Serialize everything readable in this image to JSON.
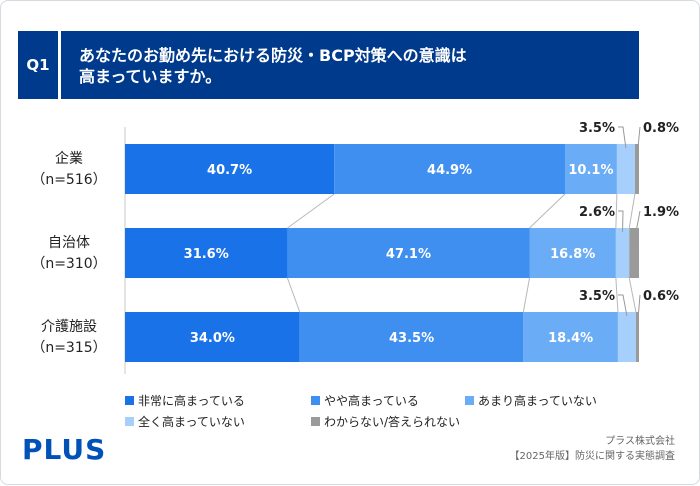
{
  "header": {
    "question_no": "Q1",
    "title_line1": "あなたのお勤め先における防災・BCP対策への意識は",
    "title_line2": "高まっていますか。"
  },
  "chart_data": {
    "type": "bar",
    "orientation": "horizontal",
    "stacked": true,
    "percent_scale": true,
    "categories": [
      {
        "name": "企業",
        "n": "（n=516）"
      },
      {
        "name": "自治体",
        "n": "（n=310）"
      },
      {
        "name": "介護施設",
        "n": "（n=315）"
      }
    ],
    "series": [
      {
        "name": "非常に高まっている",
        "color": "#1a72e8",
        "values": [
          40.7,
          31.6,
          34.0
        ]
      },
      {
        "name": "やや高まっている",
        "color": "#3e8ff0",
        "values": [
          44.9,
          47.1,
          43.5
        ]
      },
      {
        "name": "あまり高まっていない",
        "color": "#6aacf5",
        "values": [
          10.1,
          16.8,
          18.4
        ]
      },
      {
        "name": "全く高まっていない",
        "color": "#a6d0fb",
        "values": [
          3.5,
          2.6,
          3.5
        ]
      },
      {
        "name": "わからない/答えられない",
        "color": "#9a9a9a",
        "values": [
          0.8,
          1.9,
          0.6
        ]
      }
    ],
    "labels": [
      [
        "40.7%",
        "44.9%",
        "10.1%",
        "3.5%",
        "0.8%"
      ],
      [
        "31.6%",
        "47.1%",
        "16.8%",
        "2.6%",
        "1.9%"
      ],
      [
        "34.0%",
        "43.5%",
        "18.4%",
        "3.5%",
        "0.6%"
      ]
    ],
    "xlim": [
      0,
      100
    ],
    "legend_position": "bottom"
  },
  "footer": {
    "logo": "PLUS",
    "source_line1": "プラス株式会社",
    "source_line2": "【2025年版】防災に関する実態調査"
  }
}
